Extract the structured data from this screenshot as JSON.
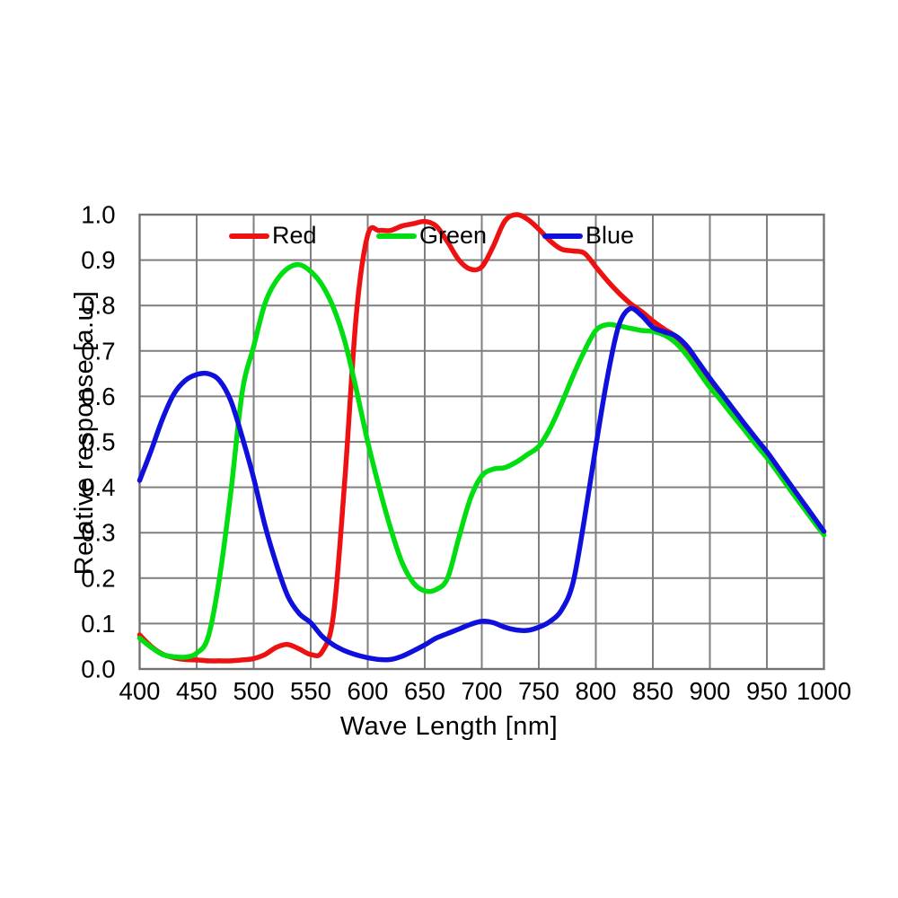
{
  "chart_data": {
    "type": "line",
    "title": "",
    "xlabel": "Wave Length [nm]",
    "ylabel": "Relative response [a.u.]",
    "xlim": [
      400,
      1000
    ],
    "ylim": [
      0.0,
      1.0
    ],
    "x_ticks": [
      400,
      450,
      500,
      550,
      600,
      650,
      700,
      750,
      800,
      850,
      900,
      950,
      1000
    ],
    "y_ticks": [
      0.0,
      0.1,
      0.2,
      0.3,
      0.4,
      0.5,
      0.6,
      0.7,
      0.8,
      0.9,
      1.0
    ],
    "grid": true,
    "legend_position": "inline-top",
    "x": [
      400,
      410,
      420,
      430,
      440,
      450,
      460,
      470,
      480,
      490,
      500,
      510,
      520,
      530,
      540,
      550,
      560,
      570,
      580,
      590,
      600,
      610,
      620,
      630,
      640,
      650,
      660,
      670,
      680,
      690,
      700,
      710,
      720,
      730,
      740,
      750,
      760,
      770,
      780,
      790,
      800,
      810,
      820,
      830,
      840,
      850,
      860,
      870,
      880,
      890,
      900,
      910,
      920,
      930,
      940,
      950,
      960,
      970,
      980,
      990,
      1000
    ],
    "series": [
      {
        "name": "Red",
        "color": "#ee1111",
        "values": [
          0.075,
          0.05,
          0.033,
          0.025,
          0.021,
          0.02,
          0.018,
          0.018,
          0.018,
          0.02,
          0.023,
          0.032,
          0.048,
          0.054,
          0.044,
          0.032,
          0.038,
          0.12,
          0.42,
          0.78,
          0.955,
          0.965,
          0.965,
          0.975,
          0.98,
          0.985,
          0.975,
          0.94,
          0.9,
          0.88,
          0.885,
          0.93,
          0.985,
          1.0,
          0.99,
          0.968,
          0.942,
          0.924,
          0.92,
          0.915,
          0.885,
          0.855,
          0.828,
          0.805,
          0.787,
          0.766,
          0.748,
          0.732,
          0.705,
          0.67,
          0.635,
          0.603,
          0.571,
          0.539,
          0.507,
          0.476,
          0.441,
          0.406,
          0.371,
          0.337,
          0.302
        ]
      },
      {
        "name": "Green",
        "color": "#00dd11",
        "values": [
          0.068,
          0.048,
          0.032,
          0.027,
          0.026,
          0.035,
          0.07,
          0.2,
          0.39,
          0.61,
          0.71,
          0.805,
          0.855,
          0.882,
          0.89,
          0.875,
          0.845,
          0.795,
          0.72,
          0.615,
          0.5,
          0.4,
          0.31,
          0.235,
          0.19,
          0.172,
          0.175,
          0.2,
          0.29,
          0.375,
          0.425,
          0.44,
          0.443,
          0.455,
          0.472,
          0.49,
          0.53,
          0.585,
          0.645,
          0.7,
          0.745,
          0.758,
          0.755,
          0.75,
          0.745,
          0.743,
          0.735,
          0.718,
          0.69,
          0.655,
          0.62,
          0.59,
          0.558,
          0.527,
          0.495,
          0.465,
          0.431,
          0.396,
          0.362,
          0.328,
          0.295
        ]
      },
      {
        "name": "Blue",
        "color": "#1010dd",
        "values": [
          0.415,
          0.48,
          0.55,
          0.605,
          0.635,
          0.648,
          0.65,
          0.635,
          0.59,
          0.51,
          0.42,
          0.315,
          0.23,
          0.16,
          0.122,
          0.102,
          0.072,
          0.053,
          0.04,
          0.031,
          0.025,
          0.021,
          0.021,
          0.028,
          0.04,
          0.053,
          0.068,
          0.078,
          0.088,
          0.098,
          0.105,
          0.102,
          0.092,
          0.086,
          0.085,
          0.092,
          0.105,
          0.13,
          0.19,
          0.33,
          0.49,
          0.64,
          0.755,
          0.793,
          0.778,
          0.752,
          0.742,
          0.733,
          0.71,
          0.675,
          0.64,
          0.607,
          0.574,
          0.541,
          0.509,
          0.478,
          0.443,
          0.408,
          0.373,
          0.338,
          0.303
        ]
      }
    ]
  },
  "style": {
    "grid_color": "#7f7f7f",
    "border_color": "#737373",
    "text_color": "#000000",
    "background": "#ffffff"
  }
}
